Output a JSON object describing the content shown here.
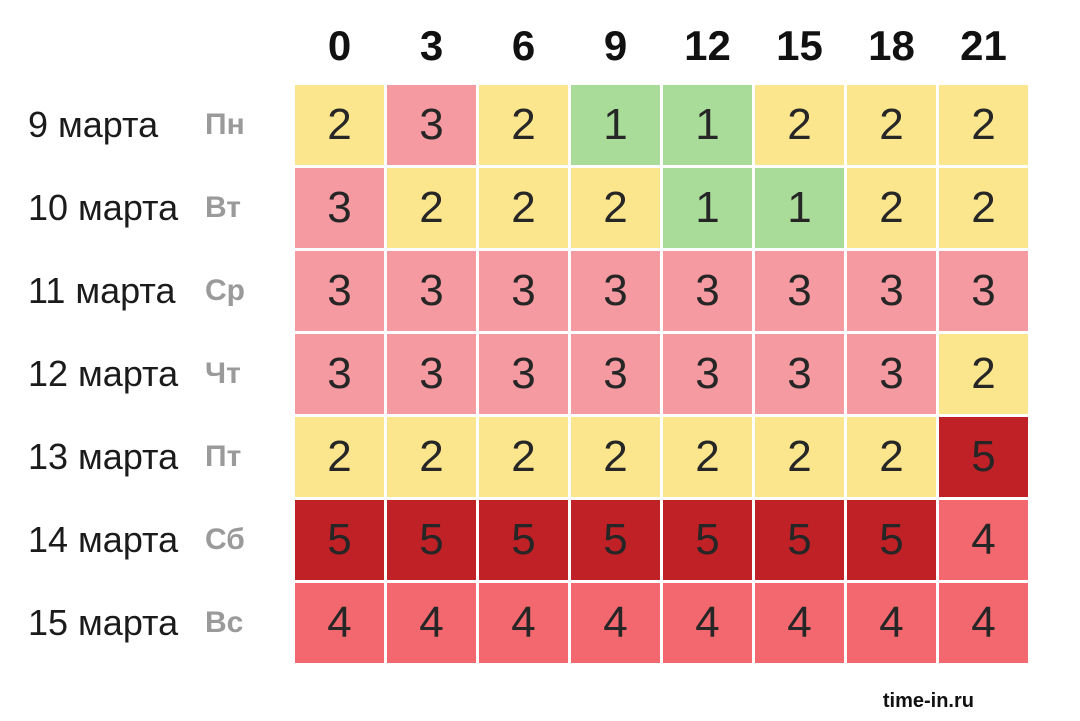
{
  "watermark": "time-in.ru",
  "chart_data": {
    "type": "heatmap",
    "x_labels": [
      "0",
      "3",
      "6",
      "9",
      "12",
      "15",
      "18",
      "21"
    ],
    "rows": [
      {
        "date": "9 марта",
        "day": "Пн",
        "values": [
          2,
          3,
          2,
          1,
          1,
          2,
          2,
          2
        ]
      },
      {
        "date": "10 марта",
        "day": "Вт",
        "values": [
          3,
          2,
          2,
          2,
          1,
          1,
          2,
          2
        ]
      },
      {
        "date": "11 марта",
        "day": "Ср",
        "values": [
          3,
          3,
          3,
          3,
          3,
          3,
          3,
          3
        ]
      },
      {
        "date": "12 марта",
        "day": "Чт",
        "values": [
          3,
          3,
          3,
          3,
          3,
          3,
          3,
          2
        ]
      },
      {
        "date": "13 марта",
        "day": "Пт",
        "values": [
          2,
          2,
          2,
          2,
          2,
          2,
          2,
          5
        ]
      },
      {
        "date": "14 марта",
        "day": "Сб",
        "values": [
          5,
          5,
          5,
          5,
          5,
          5,
          5,
          4
        ]
      },
      {
        "date": "15 марта",
        "day": "Вс",
        "values": [
          4,
          4,
          4,
          4,
          4,
          4,
          4,
          4
        ]
      }
    ],
    "value_colors": {
      "1": "#a9dc99",
      "2": "#fbe58d",
      "3": "#f59aa1",
      "4": "#f3686e",
      "5": "#c02127"
    }
  }
}
